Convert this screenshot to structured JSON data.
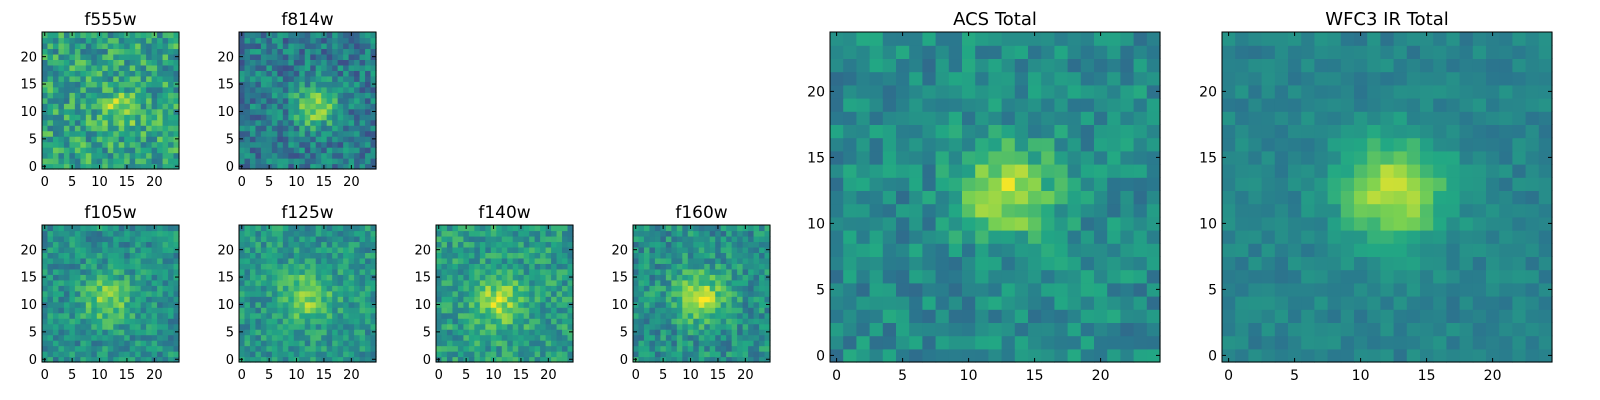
{
  "figure": {
    "background": "#ffffff",
    "colormap": "viridis",
    "colormap_stops": [
      "#440154",
      "#414487",
      "#2a788e",
      "#22a884",
      "#7ad151",
      "#fde725"
    ]
  },
  "chart_data": [
    {
      "type": "heatmap",
      "title": "f555w",
      "size": 25,
      "center": [
        13.5,
        10.5
      ],
      "spread": 2.6,
      "peak": 0.22,
      "base": 0.58,
      "noise": 0.42,
      "seed": 11,
      "xlim": [
        0,
        24
      ],
      "ylim": [
        0,
        24
      ],
      "xticks": [
        0,
        5,
        10,
        15,
        20
      ],
      "yticks": [
        0,
        5,
        10,
        15,
        20
      ],
      "grid": false
    },
    {
      "type": "heatmap",
      "title": "f814w",
      "size": 25,
      "center": [
        13.5,
        11
      ],
      "spread": 2.6,
      "peak": 0.45,
      "base": 0.42,
      "noise": 0.36,
      "seed": 23,
      "xlim": [
        0,
        24
      ],
      "ylim": [
        0,
        24
      ],
      "xticks": [
        0,
        5,
        10,
        15,
        20
      ],
      "yticks": [
        0,
        5,
        10,
        15,
        20
      ],
      "grid": false
    },
    {
      "type": "heatmap",
      "title": "f105w",
      "size": 25,
      "center": [
        11.5,
        11
      ],
      "spread": 3.2,
      "peak": 0.3,
      "base": 0.5,
      "noise": 0.3,
      "seed": 37,
      "xlim": [
        0,
        24
      ],
      "ylim": [
        0,
        24
      ],
      "xticks": [
        0,
        5,
        10,
        15,
        20
      ],
      "yticks": [
        0,
        5,
        10,
        15,
        20
      ],
      "grid": false
    },
    {
      "type": "heatmap",
      "title": "f125w",
      "size": 25,
      "center": [
        12,
        11.5
      ],
      "spread": 3.2,
      "peak": 0.3,
      "base": 0.52,
      "noise": 0.3,
      "seed": 41,
      "xlim": [
        0,
        24
      ],
      "ylim": [
        0,
        24
      ],
      "xticks": [
        0,
        5,
        10,
        15,
        20
      ],
      "yticks": [
        0,
        5,
        10,
        15,
        20
      ],
      "grid": false
    },
    {
      "type": "heatmap",
      "title": "f140w",
      "size": 25,
      "center": [
        11,
        10.5
      ],
      "spread": 3.2,
      "peak": 0.3,
      "base": 0.55,
      "noise": 0.32,
      "seed": 53,
      "xlim": [
        0,
        24
      ],
      "ylim": [
        0,
        24
      ],
      "xticks": [
        0,
        5,
        10,
        15,
        20
      ],
      "yticks": [
        0,
        5,
        10,
        15,
        20
      ],
      "grid": false
    },
    {
      "type": "heatmap",
      "title": "f160w",
      "size": 25,
      "center": [
        12,
        11.5
      ],
      "spread": 3.2,
      "peak": 0.38,
      "base": 0.5,
      "noise": 0.32,
      "seed": 67,
      "xlim": [
        0,
        24
      ],
      "ylim": [
        0,
        24
      ],
      "xticks": [
        0,
        5,
        10,
        15,
        20
      ],
      "yticks": [
        0,
        5,
        10,
        15,
        20
      ],
      "grid": false
    },
    {
      "type": "heatmap",
      "title": "ACS Total",
      "size": 25,
      "center": [
        13,
        12.5
      ],
      "spread": 2.4,
      "peak": 0.45,
      "base": 0.48,
      "noise": 0.26,
      "seed": 79,
      "xlim": [
        0,
        24
      ],
      "ylim": [
        0,
        24
      ],
      "xticks": [
        0,
        5,
        10,
        15,
        20
      ],
      "yticks": [
        0,
        5,
        10,
        15,
        20
      ],
      "grid": false
    },
    {
      "type": "heatmap",
      "title": "WFC3 IR Total",
      "size": 25,
      "center": [
        12.5,
        12.5
      ],
      "spread": 2.8,
      "peak": 0.46,
      "base": 0.45,
      "noise": 0.14,
      "seed": 97,
      "xlim": [
        0,
        24
      ],
      "ylim": [
        0,
        24
      ],
      "xticks": [
        0,
        5,
        10,
        15,
        20
      ],
      "yticks": [
        0,
        5,
        10,
        15,
        20
      ],
      "grid": false
    }
  ]
}
